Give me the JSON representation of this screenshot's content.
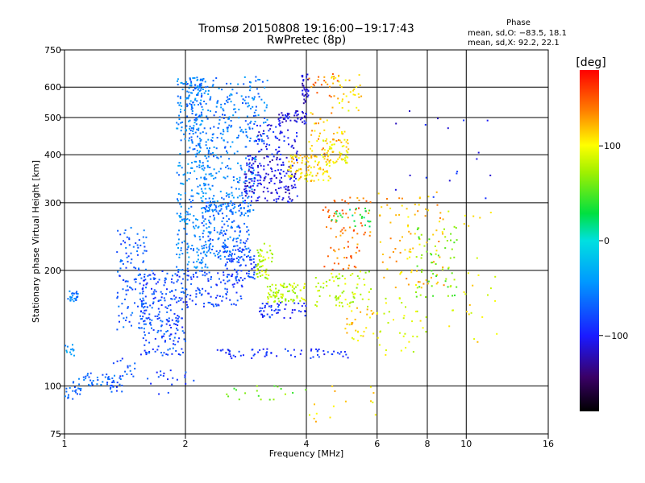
{
  "chart_data": {
    "type": "scatter",
    "title": "Tromsø 20150808 19:16:00−19:17:43",
    "subtitle": "RwPretec (8p)",
    "xlabel": "Frequency [MHz]",
    "ylabel": "Stationary phase Virtual Height [km]",
    "x_scale": "log",
    "y_scale": "log",
    "xlim": [
      1,
      16
    ],
    "ylim": [
      75,
      750
    ],
    "x_ticks": [
      1,
      2,
      4,
      6,
      8,
      10,
      16
    ],
    "x_tick_labels": [
      "1",
      "2",
      "4",
      "6",
      "8",
      "10",
      "16"
    ],
    "y_ticks": [
      75,
      100,
      200,
      300,
      400,
      500,
      600,
      750
    ],
    "y_tick_labels": [
      "75",
      "100",
      "200",
      "300",
      "400",
      "500",
      "600",
      "750"
    ],
    "grid": true,
    "stats": {
      "heading": "Phase",
      "line_o": "mean, sd,O: −83.5, 18.1",
      "line_x": "mean, sd,X:  92.2, 22.1"
    },
    "colorbar": {
      "label": "[deg]",
      "range": [
        -180,
        180
      ],
      "ticks": [
        100,
        0,
        -100
      ],
      "tick_labels": [
        "100",
        "0",
        "−100"
      ]
    },
    "clusters": [
      {
        "f": [
          1.02,
          1.08
        ],
        "h": [
          165,
          178
        ],
        "phase": -55,
        "n": 25
      },
      {
        "f": [
          1.0,
          1.06
        ],
        "h": [
          118,
          128
        ],
        "phase": -40,
        "n": 12
      },
      {
        "f": [
          1.05,
          1.4
        ],
        "h": [
          100,
          108
        ],
        "phase": -70,
        "n": 45
      },
      {
        "f": [
          1.0,
          1.1
        ],
        "h": [
          92,
          100
        ],
        "phase": -65,
        "n": 20
      },
      {
        "f": [
          1.3,
          1.5
        ],
        "h": [
          96,
          120
        ],
        "phase": -75,
        "n": 25
      },
      {
        "f": [
          1.35,
          1.6
        ],
        "h": [
          140,
          260
        ],
        "phase": -72,
        "n": 120
      },
      {
        "f": [
          1.55,
          2.0
        ],
        "h": [
          120,
          200
        ],
        "phase": -78,
        "n": 220
      },
      {
        "f": [
          1.6,
          2.1
        ],
        "h": [
          95,
          110
        ],
        "phase": -85,
        "n": 20
      },
      {
        "f": [
          1.9,
          2.3
        ],
        "h": [
          200,
          640
        ],
        "phase": -50,
        "n": 320
      },
      {
        "f": [
          2.0,
          2.2
        ],
        "h": [
          400,
          640
        ],
        "phase": -60,
        "n": 80
      },
      {
        "f": [
          2.2,
          2.9
        ],
        "h": [
          210,
          300
        ],
        "phase": -65,
        "n": 200
      },
      {
        "f": [
          2.2,
          3.0
        ],
        "h": [
          280,
          420
        ],
        "phase": -55,
        "n": 150
      },
      {
        "f": [
          2.3,
          3.2
        ],
        "h": [
          430,
          640
        ],
        "phase": -58,
        "n": 160
      },
      {
        "f": [
          2.0,
          2.8
        ],
        "h": [
          160,
          200
        ],
        "phase": -80,
        "n": 110
      },
      {
        "f": [
          2.5,
          3.0
        ],
        "h": [
          190,
          230
        ],
        "phase": -85,
        "n": 60
      },
      {
        "f": [
          2.8,
          3.8
        ],
        "h": [
          300,
          400
        ],
        "phase": -110,
        "n": 180
      },
      {
        "f": [
          3.4,
          4.0
        ],
        "h": [
          480,
          520
        ],
        "phase": -108,
        "n": 50
      },
      {
        "f": [
          3.9,
          4.05
        ],
        "h": [
          540,
          650
        ],
        "phase": -115,
        "n": 30
      },
      {
        "f": [
          3.0,
          3.8
        ],
        "h": [
          400,
          480
        ],
        "phase": -100,
        "n": 60
      },
      {
        "f": [
          3.6,
          4.6
        ],
        "h": [
          340,
          400
        ],
        "phase": 110,
        "n": 110
      },
      {
        "f": [
          4.4,
          5.1
        ],
        "h": [
          380,
          440
        ],
        "phase": 105,
        "n": 60
      },
      {
        "f": [
          4.0,
          5.0
        ],
        "h": [
          400,
          520
        ],
        "phase": 120,
        "n": 40
      },
      {
        "f": [
          4.6,
          5.5
        ],
        "h": [
          520,
          650
        ],
        "phase": 110,
        "n": 35
      },
      {
        "f": [
          4.0,
          4.8
        ],
        "h": [
          560,
          650
        ],
        "phase": 140,
        "n": 20
      },
      {
        "f": [
          3.0,
          3.3
        ],
        "h": [
          190,
          240
        ],
        "phase": 80,
        "n": 50
      },
      {
        "f": [
          3.2,
          4.0
        ],
        "h": [
          165,
          185
        ],
        "phase": 80,
        "n": 80
      },
      {
        "f": [
          4.2,
          5.8
        ],
        "h": [
          160,
          200
        ],
        "phase": 80,
        "n": 70
      },
      {
        "f": [
          3.0,
          4.0
        ],
        "h": [
          150,
          165
        ],
        "phase": -90,
        "n": 50
      },
      {
        "f": [
          2.4,
          3.4
        ],
        "h": [
          118,
          125
        ],
        "phase": -95,
        "n": 35
      },
      {
        "f": [
          3.5,
          5.5
        ],
        "h": [
          118,
          125
        ],
        "phase": -90,
        "n": 30
      },
      {
        "f": [
          4.4,
          5.8
        ],
        "h": [
          200,
          310
        ],
        "phase": 140,
        "n": 80
      },
      {
        "f": [
          4.5,
          5.8
        ],
        "h": [
          260,
          290
        ],
        "phase": 30,
        "n": 25
      },
      {
        "f": [
          5.0,
          6.0
        ],
        "h": [
          130,
          160
        ],
        "phase": 110,
        "n": 30
      },
      {
        "f": [
          6.0,
          8.8
        ],
        "h": [
          180,
          320
        ],
        "phase": 120,
        "n": 90
      },
      {
        "f": [
          6.0,
          8.0
        ],
        "h": [
          120,
          170
        ],
        "phase": 90,
        "n": 35
      },
      {
        "f": [
          7.5,
          9.5
        ],
        "h": [
          170,
          260
        ],
        "phase": 60,
        "n": 60
      },
      {
        "f": [
          9.0,
          12.0
        ],
        "h": [
          130,
          290
        ],
        "phase": 100,
        "n": 30
      },
      {
        "f": [
          6.5,
          12.0
        ],
        "h": [
          300,
          560
        ],
        "phase": -100,
        "n": 18
      },
      {
        "f": [
          2.5,
          4.0
        ],
        "h": [
          92,
          100
        ],
        "phase": 60,
        "n": 18
      },
      {
        "f": [
          4.0,
          6.0
        ],
        "h": [
          78,
          100
        ],
        "phase": 110,
        "n": 15
      }
    ]
  }
}
